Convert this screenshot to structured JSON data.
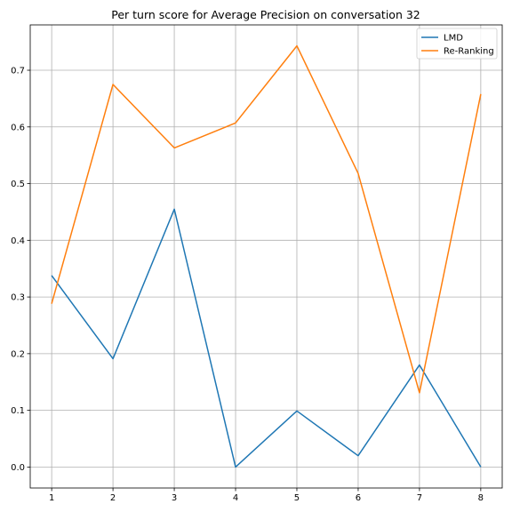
{
  "chart_data": {
    "type": "line",
    "title": "Per turn score for Average Precision on conversation 32",
    "xlabel": "",
    "ylabel": "",
    "x": [
      1,
      2,
      3,
      4,
      5,
      6,
      7,
      8
    ],
    "xticks": [
      "1",
      "2",
      "3",
      "4",
      "5",
      "6",
      "7",
      "8"
    ],
    "yticks": [
      "0.0",
      "0.1",
      "0.2",
      "0.3",
      "0.4",
      "0.5",
      "0.6",
      "0.7"
    ],
    "xlim": [
      0.65,
      8.35
    ],
    "ylim": [
      -0.037,
      0.78
    ],
    "grid": true,
    "legend_position": "top-right",
    "series": [
      {
        "name": "LMD",
        "color": "#1f77b4",
        "values": [
          0.338,
          0.191,
          0.455,
          0.0,
          0.099,
          0.02,
          0.18,
          0.0
        ]
      },
      {
        "name": "Re-Ranking",
        "color": "#ff7f0e",
        "values": [
          0.288,
          0.675,
          0.563,
          0.607,
          0.743,
          0.518,
          0.131,
          0.658
        ]
      }
    ]
  }
}
